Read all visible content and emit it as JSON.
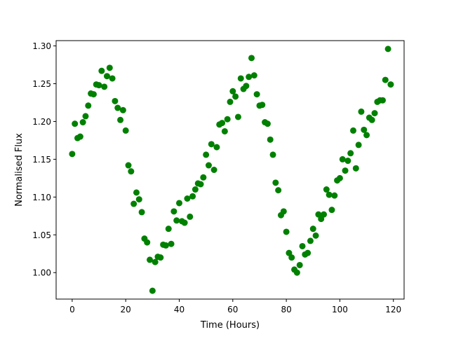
{
  "chart_data": {
    "type": "scatter",
    "xlabel": "Time (Hours)",
    "ylabel": "Normalised Flux",
    "xlim": [
      -6,
      124
    ],
    "ylim": [
      0.965,
      1.307
    ],
    "xticks": [
      0,
      20,
      40,
      60,
      80,
      100,
      120
    ],
    "xtick_labels": [
      "0",
      "20",
      "40",
      "60",
      "80",
      "100",
      "120"
    ],
    "yticks": [
      1.0,
      1.05,
      1.1,
      1.15,
      1.2,
      1.25,
      1.3
    ],
    "ytick_labels": [
      "1.00",
      "1.05",
      "1.10",
      "1.15",
      "1.20",
      "1.25",
      "1.30"
    ],
    "grid": false,
    "marker_color": "#008000",
    "series": [
      {
        "x": [
          0,
          1,
          2,
          3,
          4,
          5,
          6,
          7,
          8,
          9,
          10,
          11,
          12,
          13,
          14,
          15,
          16,
          17,
          18,
          19,
          20,
          21,
          22,
          23,
          24,
          25,
          26,
          27,
          28,
          29,
          30,
          31,
          32,
          33,
          34,
          35,
          36,
          37,
          38,
          39,
          40,
          41,
          42,
          43,
          44,
          45,
          46,
          47,
          48,
          49,
          50,
          51,
          52,
          53,
          54,
          55,
          56,
          57,
          58,
          59,
          60,
          61,
          62,
          63,
          64,
          65,
          66,
          67,
          68,
          69,
          70,
          71,
          72,
          73,
          74,
          75,
          76,
          77,
          78,
          79,
          80,
          81,
          82,
          83,
          84,
          85,
          86,
          87,
          88,
          89,
          90,
          91,
          92,
          93,
          94,
          95,
          96,
          97,
          98,
          99,
          100,
          101,
          102,
          103,
          104,
          105,
          106,
          107,
          108,
          109,
          110,
          111,
          112,
          113,
          114,
          115,
          116,
          117,
          118,
          119
        ],
        "y": [
          1.157,
          1.197,
          1.178,
          1.18,
          1.199,
          1.207,
          1.221,
          1.237,
          1.236,
          1.249,
          1.248,
          1.267,
          1.246,
          1.26,
          1.271,
          1.257,
          1.227,
          1.218,
          1.202,
          1.215,
          1.188,
          1.142,
          1.134,
          1.091,
          1.106,
          1.097,
          1.08,
          1.045,
          1.04,
          1.017,
          0.976,
          1.014,
          1.021,
          1.02,
          1.037,
          1.036,
          1.058,
          1.038,
          1.081,
          1.069,
          1.092,
          1.068,
          1.066,
          1.098,
          1.074,
          1.101,
          1.11,
          1.118,
          1.117,
          1.126,
          1.156,
          1.142,
          1.17,
          1.136,
          1.166,
          1.196,
          1.198,
          1.187,
          1.203,
          1.226,
          1.24,
          1.233,
          1.206,
          1.257,
          1.243,
          1.247,
          1.259,
          1.284,
          1.261,
          1.236,
          1.221,
          1.222,
          1.199,
          1.197,
          1.176,
          1.156,
          1.119,
          1.109,
          1.076,
          1.081,
          1.054,
          1.026,
          1.02,
          1.004,
          1.0,
          1.01,
          1.035,
          1.024,
          1.026,
          1.042,
          1.058,
          1.049,
          1.077,
          1.071,
          1.077,
          1.11,
          1.103,
          1.083,
          1.102,
          1.122,
          1.125,
          1.15,
          1.135,
          1.148,
          1.158,
          1.188,
          1.138,
          1.169,
          1.213,
          1.189,
          1.182,
          1.205,
          1.202,
          1.211,
          1.226,
          1.228,
          1.228,
          1.255,
          1.296,
          1.249
        ]
      }
    ]
  }
}
